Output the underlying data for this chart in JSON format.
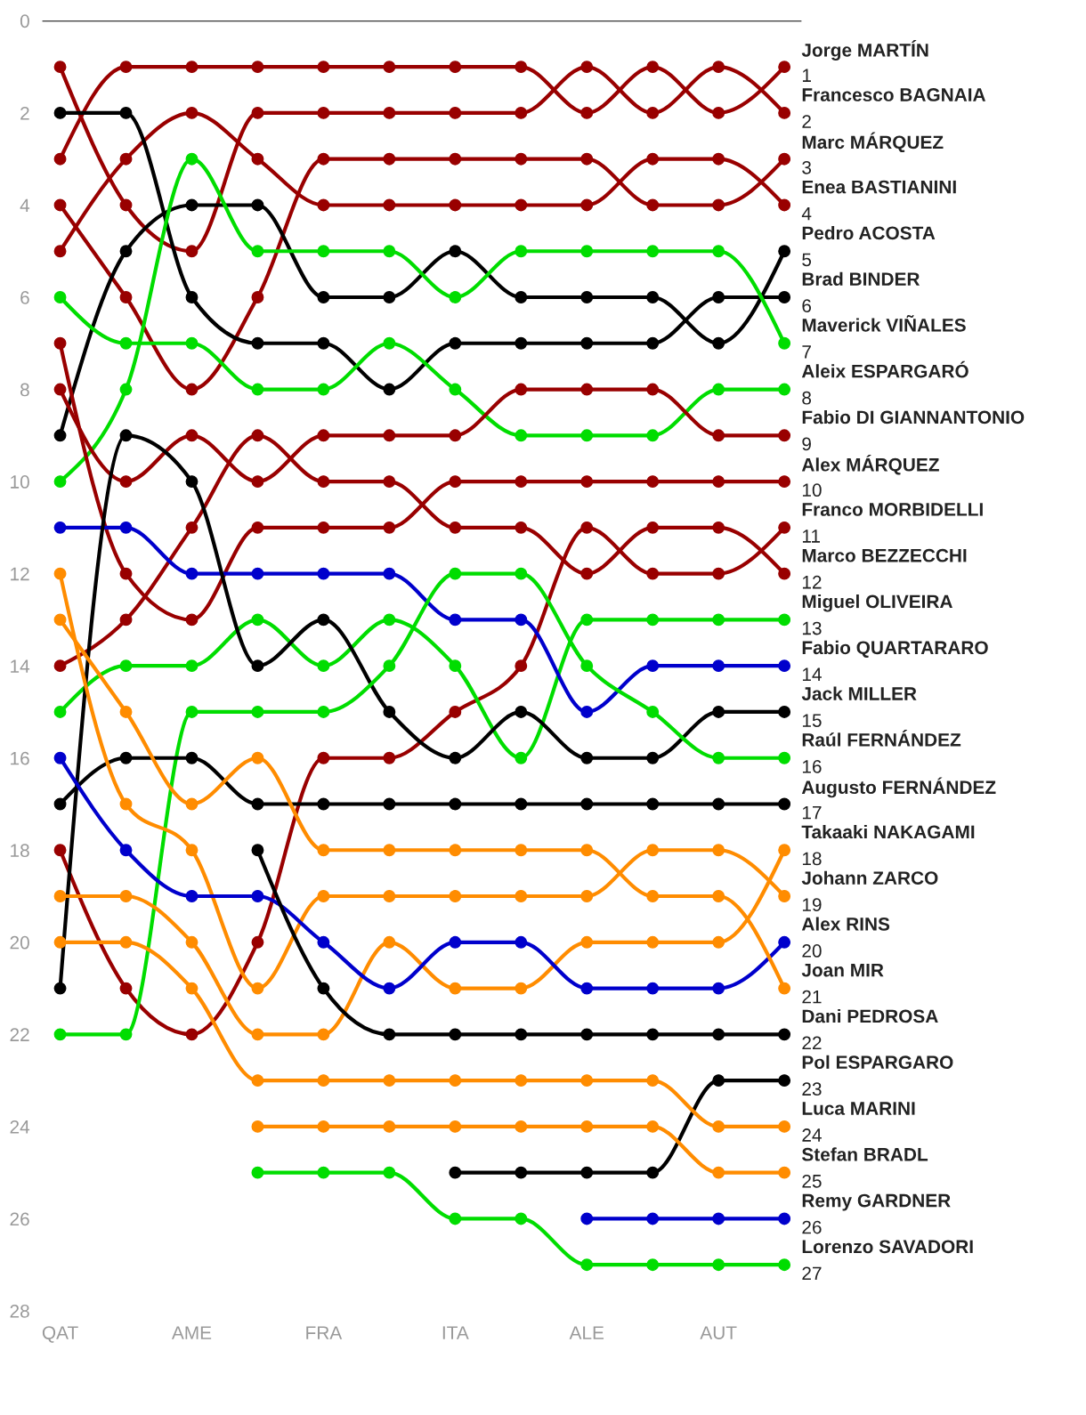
{
  "chart_data": {
    "type": "line",
    "categories": [
      "QAT",
      null,
      "AME",
      null,
      "FRA",
      null,
      "ITA",
      null,
      "ALE",
      null,
      "AUT",
      null
    ],
    "ylim": [
      28,
      0
    ],
    "yticks": [
      0,
      2,
      4,
      6,
      8,
      10,
      12,
      14,
      16,
      18,
      20,
      22,
      24,
      26,
      28
    ],
    "grid": false,
    "legend": false,
    "marker": "circle",
    "line_style": "solid",
    "ref_lines": [
      {
        "axis": "y",
        "value": 0,
        "color": "#000000"
      }
    ],
    "series": [
      {
        "name": "Jorge MARTÍN",
        "color": "#990000",
        "values": [
          3,
          1,
          1,
          1,
          1,
          1,
          1,
          1,
          2,
          1,
          2,
          1
        ],
        "value_labels": [
          null,
          null,
          null,
          null,
          null,
          null,
          null,
          null,
          null,
          null,
          null,
          "1"
        ]
      },
      {
        "name": "Francesco BAGNAIA",
        "color": "#990000",
        "values": [
          1,
          4,
          5,
          2,
          2,
          2,
          2,
          2,
          1,
          2,
          1,
          2
        ],
        "value_labels": [
          null,
          null,
          null,
          null,
          null,
          null,
          null,
          null,
          null,
          null,
          null,
          "2"
        ]
      },
      {
        "name": "Marc MÁRQUEZ",
        "color": "#990000",
        "values": [
          4,
          6,
          8,
          6,
          3,
          3,
          3,
          3,
          3,
          4,
          4,
          3
        ],
        "value_labels": [
          null,
          null,
          null,
          null,
          null,
          null,
          null,
          null,
          null,
          null,
          null,
          "3"
        ]
      },
      {
        "name": "Enea BASTIANINI",
        "color": "#990000",
        "values": [
          5,
          3,
          2,
          3,
          4,
          4,
          4,
          4,
          4,
          3,
          3,
          4
        ],
        "value_labels": [
          null,
          null,
          null,
          null,
          null,
          null,
          null,
          null,
          null,
          null,
          null,
          "4"
        ]
      },
      {
        "name": "Pedro ACOSTA",
        "color": "#000000",
        "values": [
          9,
          5,
          4,
          4,
          6,
          6,
          5,
          6,
          6,
          6,
          7,
          5
        ],
        "value_labels": [
          null,
          null,
          null,
          null,
          null,
          null,
          null,
          null,
          null,
          null,
          null,
          "5"
        ]
      },
      {
        "name": "Brad BINDER",
        "color": "#000000",
        "values": [
          2,
          2,
          6,
          7,
          7,
          8,
          7,
          7,
          7,
          7,
          6,
          6
        ],
        "value_labels": [
          null,
          null,
          null,
          null,
          null,
          null,
          null,
          null,
          null,
          null,
          null,
          "6"
        ]
      },
      {
        "name": "Maverick VIÑALES",
        "color": "#00dd00",
        "values": [
          10,
          8,
          3,
          5,
          5,
          5,
          6,
          5,
          5,
          5,
          5,
          7
        ],
        "value_labels": [
          null,
          null,
          null,
          null,
          null,
          null,
          null,
          null,
          null,
          null,
          null,
          "7"
        ]
      },
      {
        "name": "Aleix ESPARGARÓ",
        "color": "#00dd00",
        "values": [
          6,
          7,
          7,
          8,
          8,
          7,
          8,
          9,
          9,
          9,
          8,
          8
        ],
        "value_labels": [
          null,
          null,
          null,
          null,
          null,
          null,
          null,
          null,
          null,
          null,
          null,
          "8"
        ]
      },
      {
        "name": "Fabio DI GIANNANTONIO",
        "color": "#990000",
        "values": [
          8,
          10,
          9,
          10,
          9,
          9,
          9,
          8,
          8,
          8,
          9,
          9
        ],
        "value_labels": [
          null,
          null,
          null,
          null,
          null,
          null,
          null,
          null,
          null,
          null,
          null,
          "9"
        ]
      },
      {
        "name": "Alex MÁRQUEZ",
        "color": "#990000",
        "values": [
          7,
          12,
          13,
          11,
          11,
          11,
          10,
          10,
          10,
          10,
          10,
          10
        ],
        "value_labels": [
          null,
          null,
          null,
          null,
          null,
          null,
          null,
          null,
          null,
          null,
          null,
          "10"
        ]
      },
      {
        "name": "Franco MORBIDELLI",
        "color": "#990000",
        "values": [
          18,
          21,
          22,
          20,
          16,
          16,
          15,
          14,
          11,
          12,
          12,
          11
        ],
        "value_labels": [
          null,
          null,
          null,
          null,
          null,
          null,
          null,
          null,
          null,
          null,
          null,
          "11"
        ]
      },
      {
        "name": "Marco BEZZECCHI",
        "color": "#990000",
        "values": [
          14,
          13,
          11,
          9,
          10,
          10,
          11,
          11,
          12,
          11,
          11,
          12
        ],
        "value_labels": [
          null,
          null,
          null,
          null,
          null,
          null,
          null,
          null,
          null,
          null,
          null,
          "12"
        ]
      },
      {
        "name": "Miguel OLIVEIRA",
        "color": "#00dd00",
        "values": [
          15,
          14,
          14,
          13,
          14,
          13,
          14,
          16,
          13,
          13,
          13,
          13
        ],
        "value_labels": [
          null,
          null,
          null,
          null,
          null,
          null,
          null,
          null,
          null,
          null,
          null,
          "13"
        ]
      },
      {
        "name": "Fabio QUARTARARO",
        "color": "#0000cc",
        "values": [
          11,
          11,
          12,
          12,
          12,
          12,
          13,
          13,
          15,
          14,
          14,
          14
        ],
        "value_labels": [
          null,
          null,
          null,
          null,
          null,
          null,
          null,
          null,
          null,
          null,
          null,
          "14"
        ]
      },
      {
        "name": "Jack MILLER",
        "color": "#000000",
        "values": [
          21,
          9,
          10,
          14,
          13,
          15,
          16,
          15,
          16,
          16,
          15,
          15
        ],
        "value_labels": [
          null,
          null,
          null,
          null,
          null,
          null,
          null,
          null,
          null,
          null,
          null,
          "15"
        ]
      },
      {
        "name": "Raúl FERNÁNDEZ",
        "color": "#00dd00",
        "values": [
          22,
          22,
          15,
          15,
          15,
          14,
          12,
          12,
          14,
          15,
          16,
          16
        ],
        "value_labels": [
          null,
          null,
          null,
          null,
          null,
          null,
          null,
          null,
          null,
          null,
          null,
          "16"
        ]
      },
      {
        "name": "Augusto FERNÁNDEZ",
        "color": "#000000",
        "values": [
          17,
          16,
          16,
          17,
          17,
          17,
          17,
          17,
          17,
          17,
          17,
          17
        ],
        "value_labels": [
          null,
          null,
          null,
          null,
          null,
          null,
          null,
          null,
          null,
          null,
          null,
          "17"
        ]
      },
      {
        "name": "Takaaki NAKAGAMI",
        "color": "#ff8c00",
        "values": [
          19,
          19,
          20,
          22,
          22,
          20,
          21,
          21,
          20,
          20,
          20,
          18
        ],
        "value_labels": [
          null,
          null,
          null,
          null,
          null,
          null,
          null,
          null,
          null,
          null,
          null,
          "18"
        ]
      },
      {
        "name": "Johann ZARCO",
        "color": "#ff8c00",
        "values": [
          12,
          17,
          18,
          21,
          19,
          19,
          19,
          19,
          19,
          18,
          18,
          19
        ],
        "value_labels": [
          null,
          null,
          null,
          null,
          null,
          null,
          null,
          null,
          null,
          null,
          null,
          "19"
        ]
      },
      {
        "name": "Alex RINS",
        "color": "#0000cc",
        "values": [
          16,
          18,
          19,
          19,
          20,
          21,
          20,
          20,
          21,
          21,
          21,
          20
        ],
        "value_labels": [
          null,
          null,
          null,
          null,
          null,
          null,
          null,
          null,
          null,
          null,
          null,
          "20"
        ]
      },
      {
        "name": "Joan MIR",
        "color": "#ff8c00",
        "values": [
          13,
          15,
          17,
          16,
          18,
          18,
          18,
          18,
          18,
          19,
          19,
          21
        ],
        "value_labels": [
          null,
          null,
          null,
          null,
          null,
          null,
          null,
          null,
          null,
          null,
          null,
          "21"
        ]
      },
      {
        "name": "Dani PEDROSA",
        "color": "#000000",
        "values": [
          null,
          null,
          null,
          18,
          21,
          22,
          22,
          22,
          22,
          22,
          22,
          22
        ],
        "value_labels": [
          null,
          null,
          null,
          null,
          null,
          null,
          null,
          null,
          null,
          null,
          null,
          "22"
        ]
      },
      {
        "name": "Pol ESPARGARO",
        "color": "#000000",
        "values": [
          null,
          null,
          null,
          null,
          null,
          null,
          25,
          25,
          25,
          25,
          23,
          23
        ],
        "value_labels": [
          null,
          null,
          null,
          null,
          null,
          null,
          null,
          null,
          null,
          null,
          null,
          "23"
        ]
      },
      {
        "name": "Luca MARINI",
        "color": "#ff8c00",
        "values": [
          20,
          20,
          21,
          23,
          23,
          23,
          23,
          23,
          23,
          23,
          24,
          24
        ],
        "value_labels": [
          null,
          null,
          null,
          null,
          null,
          null,
          null,
          null,
          null,
          null,
          null,
          "24"
        ]
      },
      {
        "name": "Stefan BRADL",
        "color": "#ff8c00",
        "values": [
          null,
          null,
          null,
          24,
          24,
          24,
          24,
          24,
          24,
          24,
          25,
          25
        ],
        "value_labels": [
          null,
          null,
          null,
          null,
          null,
          null,
          null,
          null,
          null,
          null,
          null,
          "25"
        ]
      },
      {
        "name": "Remy GARDNER",
        "color": "#0000cc",
        "values": [
          null,
          null,
          null,
          null,
          null,
          null,
          null,
          null,
          26,
          26,
          26,
          26
        ],
        "value_labels": [
          null,
          null,
          null,
          null,
          null,
          null,
          null,
          null,
          null,
          null,
          null,
          "26"
        ]
      },
      {
        "name": "Lorenzo SAVADORI",
        "color": "#00dd00",
        "values": [
          null,
          null,
          null,
          25,
          25,
          25,
          26,
          26,
          27,
          27,
          27,
          27
        ],
        "value_labels": [
          null,
          null,
          null,
          null,
          null,
          null,
          null,
          null,
          null,
          null,
          null,
          "27"
        ]
      }
    ]
  }
}
